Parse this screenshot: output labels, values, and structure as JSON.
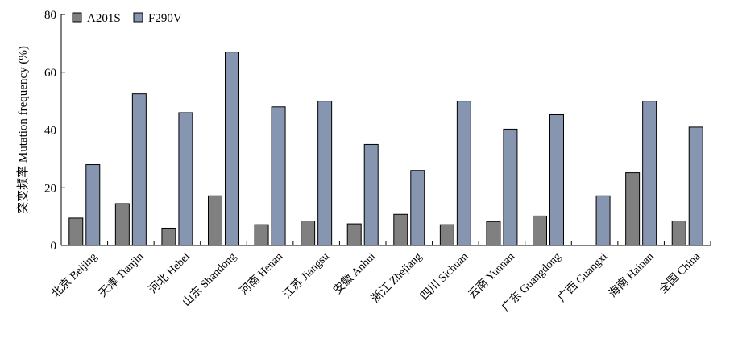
{
  "chart_data": {
    "type": "bar",
    "ylabel": "突变频率 Mutation frequency (%)",
    "ylim": [
      0,
      80
    ],
    "yticks": [
      0,
      20,
      40,
      60,
      80
    ],
    "categories": [
      "北京 Beijing",
      "天津 Tianjin",
      "河北 Hebei",
      "山东 Shandong",
      "河南 Henan",
      "江苏 Jiangsu",
      "安徽 Anhui",
      "浙江 Zhejiang",
      "四川 Sichuan",
      "云南 Yunnan",
      "广东 Guangdong",
      "广西 Guangxi",
      "海南 Hainan",
      "全国 China"
    ],
    "series": [
      {
        "name": "A201S",
        "color": "#808080",
        "values": [
          9.5,
          14.5,
          6,
          17.2,
          7.2,
          8.5,
          7.5,
          10.8,
          7.2,
          8.3,
          10.2,
          0,
          25.2,
          8.5
        ]
      },
      {
        "name": "F290V",
        "color": "#8796b0",
        "values": [
          28,
          52.5,
          46,
          67,
          48,
          50,
          35,
          26,
          50,
          40.3,
          45.3,
          17.2,
          50,
          41
        ]
      }
    ],
    "legend_position": "top-left",
    "grid": false
  }
}
